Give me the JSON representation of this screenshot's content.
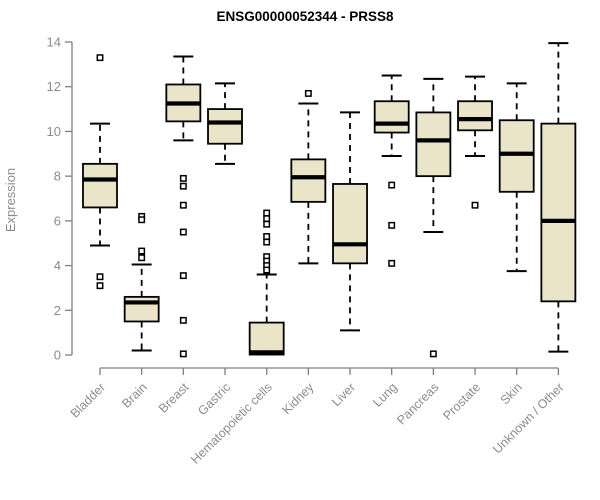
{
  "colors": {
    "box_fill": "#EAE5C8",
    "box_stroke": "#000000",
    "median": "#000000",
    "whisker": "#000000",
    "axis": "#808080",
    "tick_label": "#8C8C8C",
    "title": "#000000",
    "background": "#FFFFFF"
  },
  "chart_data": {
    "type": "boxplot",
    "title": "ENSG00000052344 - PRSS8",
    "xlabel": "",
    "ylabel": "Expression",
    "ylim": [
      0,
      14
    ],
    "yticks": [
      0,
      2,
      4,
      6,
      8,
      10,
      12,
      14
    ],
    "grid": false,
    "legend": false,
    "categories": [
      "Bladder",
      "Brain",
      "Breast",
      "Gastric",
      "Hematopoietic cells",
      "Kidney",
      "Liver",
      "Lung",
      "Pancreas",
      "Prostate",
      "Skin",
      "Unknown / Other"
    ],
    "series": [
      {
        "category": "Bladder",
        "whisker_low": 4.9,
        "q1": 6.6,
        "median": 7.85,
        "q3": 8.55,
        "whisker_high": 10.35,
        "outliers": [
          13.3,
          3.5,
          3.1
        ]
      },
      {
        "category": "Brain",
        "whisker_low": 0.2,
        "q1": 1.5,
        "median": 2.35,
        "q3": 2.6,
        "whisker_high": 4.05,
        "outliers": [
          6.2,
          6.05,
          4.65,
          4.35
        ]
      },
      {
        "category": "Breast",
        "whisker_low": 9.6,
        "q1": 10.45,
        "median": 11.25,
        "q3": 12.1,
        "whisker_high": 13.35,
        "outliers": [
          7.9,
          7.55,
          6.7,
          5.5,
          3.55,
          1.55,
          0.05
        ]
      },
      {
        "category": "Gastric",
        "whisker_low": 8.55,
        "q1": 9.45,
        "median": 10.4,
        "q3": 11.0,
        "whisker_high": 12.15,
        "outliers": []
      },
      {
        "category": "Hematopoietic cells",
        "whisker_low": 0.02,
        "q1": 0.02,
        "median": 0.12,
        "q3": 1.45,
        "whisker_high": 3.6,
        "outliers": [
          6.35,
          6.1,
          5.85,
          5.3,
          5.05,
          4.4,
          4.2,
          4.0,
          3.8
        ]
      },
      {
        "category": "Kidney",
        "whisker_low": 4.1,
        "q1": 6.85,
        "median": 7.95,
        "q3": 8.75,
        "whisker_high": 11.25,
        "outliers": [
          11.7
        ]
      },
      {
        "category": "Liver",
        "whisker_low": 1.1,
        "q1": 4.1,
        "median": 4.95,
        "q3": 7.65,
        "whisker_high": 10.85,
        "outliers": []
      },
      {
        "category": "Lung",
        "whisker_low": 8.9,
        "q1": 9.95,
        "median": 10.35,
        "q3": 11.35,
        "whisker_high": 12.5,
        "outliers": [
          7.6,
          5.8,
          4.1
        ]
      },
      {
        "category": "Pancreas",
        "whisker_low": 5.5,
        "q1": 8.0,
        "median": 9.6,
        "q3": 10.85,
        "whisker_high": 12.35,
        "outliers": [
          0.05
        ]
      },
      {
        "category": "Prostate",
        "whisker_low": 8.9,
        "q1": 10.05,
        "median": 10.55,
        "q3": 11.35,
        "whisker_high": 12.45,
        "outliers": [
          6.7
        ]
      },
      {
        "category": "Skin",
        "whisker_low": 3.75,
        "q1": 7.3,
        "median": 9.0,
        "q3": 10.5,
        "whisker_high": 12.15,
        "outliers": []
      },
      {
        "category": "Unknown / Other",
        "whisker_low": 0.15,
        "q1": 2.4,
        "median": 6.0,
        "q3": 10.35,
        "whisker_high": 13.95,
        "outliers": []
      }
    ]
  }
}
